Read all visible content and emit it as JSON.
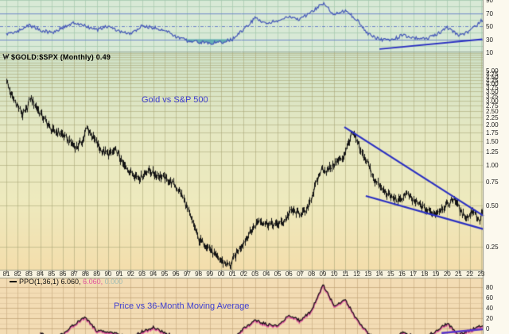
{
  "header": {
    "symbol_label": "$GOLD:$SPX (Monthly) 0.49"
  },
  "main_panel": {
    "title": "Gold vs S&P 500"
  },
  "ppo_panel": {
    "label_ppo": "PPO(1,36,1) 6.060,",
    "label_signal": "6.060,",
    "label_hist": "0.000",
    "title": "Price vs 36-Month Moving Average"
  },
  "axes": {
    "rsi_ticks": [
      "90",
      "70",
      "50",
      "30",
      "10"
    ],
    "main_ticks": [
      "5.00",
      "4.75",
      "4.50",
      "4.25",
      "4.00",
      "3.75",
      "3.50",
      "3.25",
      "3.00",
      "2.75",
      "2.50",
      "2.25",
      "2.00",
      "1.75",
      "1.50",
      "1.25",
      "1.00",
      "0.75",
      "0.50",
      "0.25"
    ],
    "ppo_ticks": [
      "80",
      "60",
      "40",
      "20",
      "0",
      "-20"
    ],
    "years": [
      "81",
      "82",
      "83",
      "84",
      "85",
      "86",
      "87",
      "88",
      "89",
      "90",
      "91",
      "92",
      "93",
      "94",
      "95",
      "96",
      "97",
      "98",
      "99",
      "00",
      "01",
      "02",
      "03",
      "04",
      "05",
      "06",
      "07",
      "08",
      "09",
      "10",
      "11",
      "12",
      "13",
      "14",
      "15",
      "16",
      "17",
      "18",
      "19",
      "20",
      "21",
      "22",
      "23"
    ]
  },
  "colors": {
    "rsi_line": "#4356b8",
    "rsi_fill": "#53a8ad",
    "band_line": "#6b84c8",
    "trendline": "#2a2fc2",
    "price": "#141414",
    "ppo_line": "#141414",
    "ppo_signal": "#e0559f",
    "ppo_trend": "#5a35c8",
    "title_text": "#3f3fd0",
    "top_bg": "#d8e9d6",
    "main_bg_top": "#cfe2c8",
    "main_bg_mid": "#eeeabe",
    "main_bg_bottom": "#f4deac",
    "ppo_bg": "#f3dcb4",
    "strip_bg": "#f8f3e0",
    "gutter_bg": "#fcf9ee"
  },
  "chart_data": [
    {
      "type": "line",
      "panel": "top-oscillator",
      "name": "momentum oscillator (RSI-style)",
      "ylim": [
        10,
        90
      ],
      "hlines": [
        {
          "v": 70,
          "style": "solid"
        },
        {
          "v": 50,
          "style": "dash-dot"
        },
        {
          "v": 30,
          "style": "solid"
        }
      ],
      "fill_below": 30,
      "x": [
        1981,
        1982,
        1983,
        1984,
        1985,
        1986,
        1987,
        1988,
        1989,
        1990,
        1991,
        1992,
        1993,
        1994,
        1995,
        1996,
        1997,
        1998,
        1999,
        2000,
        2001,
        2002,
        2003,
        2004,
        2005,
        2006,
        2007,
        2008,
        2009,
        2010,
        2011,
        2012,
        2013,
        2014,
        2015,
        2016,
        2017,
        2018,
        2019,
        2020,
        2021,
        2022,
        2023
      ],
      "values": [
        38,
        42,
        52,
        44,
        40,
        48,
        55,
        50,
        44,
        50,
        42,
        38,
        50,
        48,
        44,
        34,
        28,
        26,
        24,
        25,
        30,
        45,
        62,
        55,
        58,
        64,
        60,
        72,
        85,
        68,
        74,
        60,
        38,
        30,
        28,
        36,
        32,
        31,
        36,
        48,
        36,
        42,
        58
      ],
      "trendline": {
        "x1": 2014.0,
        "y1": 15,
        "x2": 2023.1,
        "y2": 30
      }
    },
    {
      "type": "ohlc-bar",
      "panel": "main",
      "name": "$GOLD:$SPX",
      "timeframe": "Monthly",
      "last": 0.49,
      "scale": "log",
      "ylim": [
        0.15,
        7.0
      ],
      "annotations": [
        "Gold vs S&P 500"
      ],
      "x": [
        1981.0,
        1981.3,
        1981.8,
        1982.4,
        1982.8,
        1983.1,
        1983.6,
        1984.2,
        1985.0,
        1985.8,
        1986.5,
        1987.2,
        1987.8,
        1988.1,
        1988.6,
        1989.3,
        1990.0,
        1990.7,
        1991.3,
        1992.0,
        1992.8,
        1993.5,
        1994.2,
        1995.0,
        1995.8,
        1996.5,
        1997.2,
        1998.0,
        1998.8,
        1999.5,
        2000.2,
        2000.8,
        2001.3,
        2002.0,
        2002.8,
        2003.3,
        2004.0,
        2004.8,
        2005.5,
        2006.2,
        2006.8,
        2007.5,
        2008.2,
        2008.9,
        2009.3,
        2010.0,
        2010.8,
        2011.6,
        2011.9,
        2012.3,
        2012.9,
        2013.5,
        2014.2,
        2015.0,
        2015.8,
        2016.3,
        2016.9,
        2017.5,
        2018.2,
        2018.9,
        2019.5,
        2020.0,
        2020.6,
        2021.2,
        2021.8,
        2022.3,
        2022.8,
        2023.2
      ],
      "values": [
        4.3,
        3.4,
        2.9,
        2.35,
        2.6,
        3.15,
        2.7,
        2.25,
        1.8,
        1.72,
        1.5,
        1.35,
        1.55,
        1.9,
        1.62,
        1.3,
        1.2,
        1.28,
        1.0,
        0.88,
        0.8,
        0.92,
        0.85,
        0.8,
        0.72,
        0.6,
        0.42,
        0.28,
        0.25,
        0.21,
        0.19,
        0.18,
        0.22,
        0.27,
        0.34,
        0.39,
        0.37,
        0.36,
        0.38,
        0.46,
        0.44,
        0.45,
        0.65,
        0.95,
        0.9,
        1.02,
        1.15,
        1.72,
        1.55,
        1.25,
        1.05,
        0.78,
        0.66,
        0.58,
        0.54,
        0.62,
        0.55,
        0.51,
        0.46,
        0.44,
        0.48,
        0.51,
        0.57,
        0.44,
        0.41,
        0.47,
        0.38,
        0.49
      ],
      "trendlines": [
        {
          "x1": 2010.9,
          "y1": 1.91,
          "x2": 2023.5,
          "y2": 0.42
        },
        {
          "x1": 2012.8,
          "y1": 0.59,
          "x2": 2023.5,
          "y2": 0.335
        }
      ]
    },
    {
      "type": "line",
      "panel": "bottom",
      "name": "PPO(1,36,1)",
      "current": 6.06,
      "signal": 6.06,
      "histogram": 0.0,
      "ylim": [
        -20,
        90
      ],
      "x": [
        1984,
        1985,
        1986,
        1987,
        1988,
        1989,
        1990,
        1991,
        1992,
        1993,
        1994,
        1995,
        1996,
        1997,
        1998,
        1999,
        2000,
        2001,
        2002,
        2003,
        2004,
        2005,
        2006,
        2007,
        2008,
        2009,
        2010,
        2011,
        2012,
        2013,
        2014,
        2015,
        2016,
        2017,
        2018,
        2019,
        2020,
        2021,
        2022,
        2023
      ],
      "values": [
        -8,
        -18,
        -10,
        8,
        22,
        -4,
        -6,
        -12,
        -18,
        -6,
        2,
        -8,
        -16,
        -28,
        -38,
        -42,
        -38,
        -22,
        0,
        16,
        8,
        5,
        25,
        15,
        35,
        85,
        45,
        55,
        18,
        -10,
        -22,
        -25,
        -8,
        -14,
        -16,
        -5,
        10,
        -12,
        -4,
        6.06
      ],
      "trendline": {
        "x1": 2019.5,
        "y1": -9,
        "x2": 2023.5,
        "y2": -1.5
      }
    }
  ]
}
